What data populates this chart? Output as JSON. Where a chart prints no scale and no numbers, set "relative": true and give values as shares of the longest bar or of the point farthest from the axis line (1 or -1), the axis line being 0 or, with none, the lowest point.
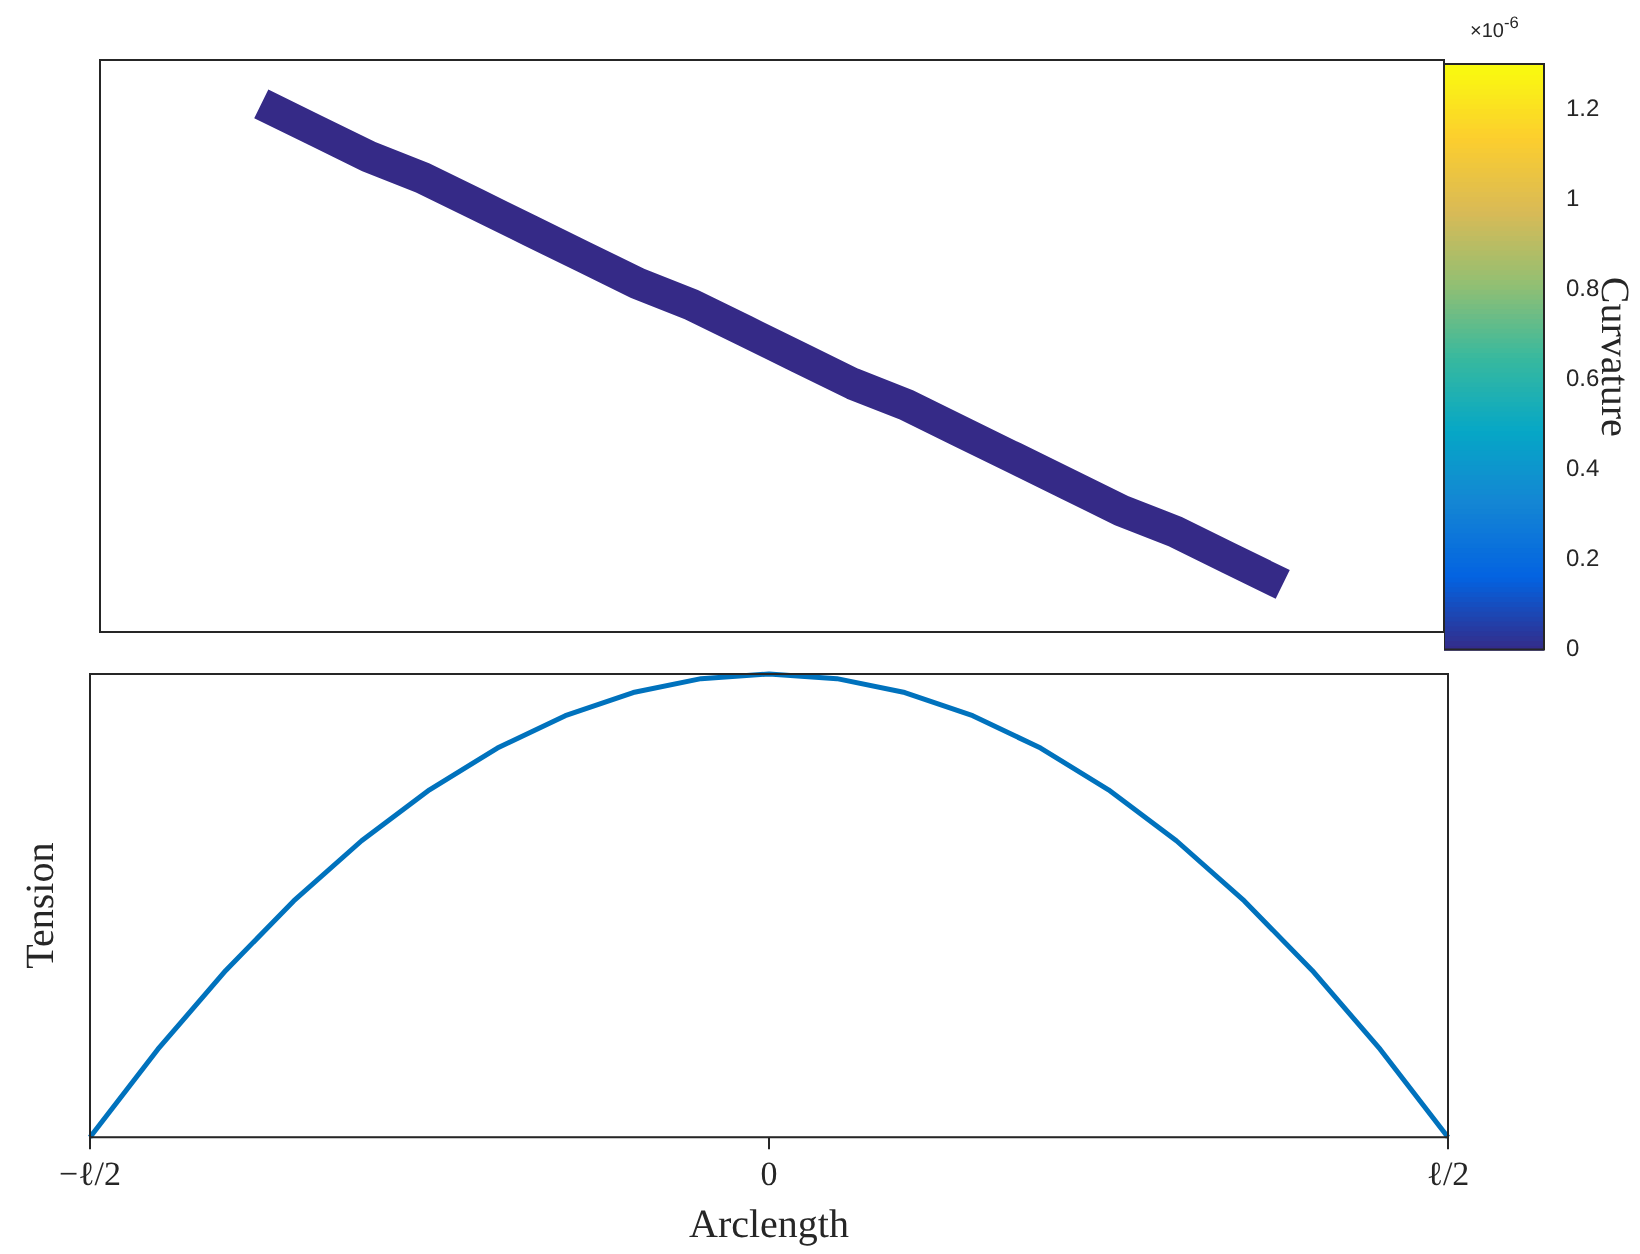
{
  "chart_data": [
    {
      "type": "line",
      "relative": true,
      "tick_labels": false,
      "grid": false,
      "legend": false,
      "marker": "none",
      "categories": [
        null,
        null,
        null,
        null,
        null,
        null,
        null,
        null,
        null,
        null,
        null,
        null,
        null,
        null,
        null,
        null,
        null,
        null,
        null,
        null,
        null,
        null,
        null,
        null,
        null,
        null
      ],
      "series": [
        {
          "color": "#352a87",
          "values": [
            null,
            null,
            null,
            1,
            0.95,
            0.9,
            0.86,
            0.81,
            0.76,
            0.71,
            0.66,
            0.62,
            0.57,
            0.52,
            0.47,
            0.43,
            0.38,
            0.33,
            0.28,
            0.23,
            0.19,
            0.14,
            0.09,
            null,
            null,
            null
          ]
        }
      ],
      "clabel": "Curvature",
      "clim": [
        0,
        1.3
      ],
      "cticks": [
        0,
        0.2,
        0.4,
        0.6,
        0.8,
        1,
        1.2
      ],
      "annotations": [
        "×10$^{-6}$"
      ]
    },
    {
      "type": "line",
      "relative": true,
      "xlabel": "Arclength",
      "ylabel": "Tension",
      "tick_labels": "x",
      "grid": false,
      "legend": false,
      "marker": "none",
      "line_style": "solid",
      "categories": [
        "−ℓ/2",
        null,
        null,
        null,
        null,
        null,
        null,
        null,
        null,
        null,
        "0",
        null,
        null,
        null,
        null,
        null,
        null,
        null,
        null,
        null,
        "ℓ/2"
      ],
      "series": [
        {
          "color": "#0072bd",
          "values": [
            0,
            0.19,
            0.36,
            0.51,
            0.64,
            0.75,
            0.84,
            0.91,
            0.96,
            0.99,
            1,
            0.99,
            0.96,
            0.91,
            0.84,
            0.75,
            0.64,
            0.51,
            0.36,
            0.19,
            0
          ]
        }
      ]
    }
  ]
}
